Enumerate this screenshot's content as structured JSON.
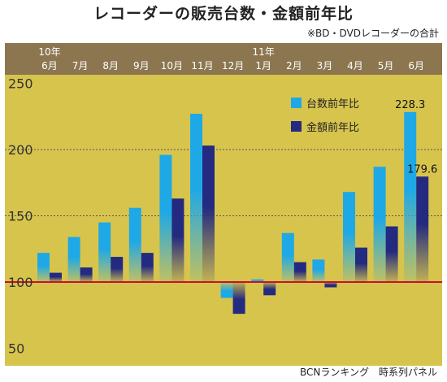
{
  "title": "レコーダーの販売台数・金額前年比",
  "subtitle": "※BD・DVDレコーダーの合計",
  "footer": "BCNランキング　時系列パネル",
  "colors": {
    "background": "#d7c44d",
    "header_band": "#8c7650",
    "units": "#1fa8e6",
    "amount": "#232a80",
    "baseline": "#c8102e",
    "grid": "#555555"
  },
  "chart_data": {
    "type": "bar",
    "categories": [
      {
        "year": "10年",
        "month": "6月"
      },
      {
        "year": "",
        "month": "7月"
      },
      {
        "year": "",
        "month": "8月"
      },
      {
        "year": "",
        "month": "9月"
      },
      {
        "year": "",
        "month": "10月"
      },
      {
        "year": "",
        "month": "11月"
      },
      {
        "year": "",
        "month": "12月"
      },
      {
        "year": "11年",
        "month": "1月"
      },
      {
        "year": "",
        "month": "2月"
      },
      {
        "year": "",
        "month": "3月"
      },
      {
        "year": "",
        "month": "4月"
      },
      {
        "year": "",
        "month": "5月"
      },
      {
        "year": "",
        "month": "6月"
      }
    ],
    "series": [
      {
        "name": "台数前年比",
        "color": "#1fa8e6",
        "values": [
          122,
          134,
          145,
          156,
          196,
          227,
          88,
          102,
          137,
          117,
          168,
          187,
          228.3
        ]
      },
      {
        "name": "金額前年比",
        "color": "#232a80",
        "values": [
          107,
          111,
          119,
          122,
          163,
          203,
          76,
          90,
          115,
          96,
          126,
          142,
          179.6
        ]
      }
    ],
    "data_labels": [
      {
        "series": 0,
        "index": 12,
        "text": "228.3"
      },
      {
        "series": 1,
        "index": 12,
        "text": "179.6"
      }
    ],
    "yticks": [
      50,
      100,
      150,
      200,
      250
    ],
    "ylim": [
      45,
      255
    ],
    "baseline": 100,
    "gridlines": [
      150,
      200
    ],
    "legend": "top-right"
  }
}
